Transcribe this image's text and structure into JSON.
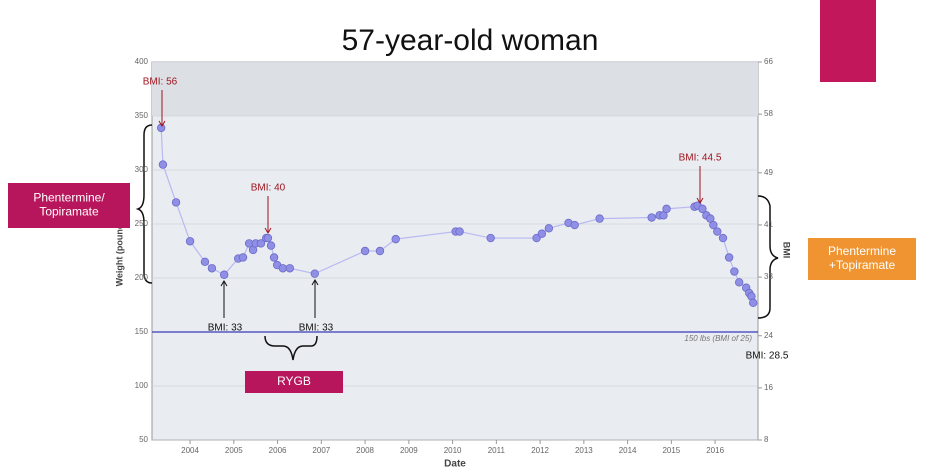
{
  "chart_data": {
    "type": "line",
    "title": "57-year-old woman",
    "xlabel": "Date",
    "ylabel": "Weight (pounds)",
    "y2label": "BMI",
    "x": [
      2003.34,
      2003.38,
      2003.68,
      2004.0,
      2004.34,
      2004.5,
      2004.78,
      2005.1,
      2005.21,
      2005.35,
      2005.44,
      2005.5,
      2005.62,
      2005.74,
      2005.78,
      2005.85,
      2005.92,
      2005.99,
      2006.12,
      2006.28,
      2006.85,
      2008.0,
      2008.34,
      2008.7,
      2010.07,
      2010.16,
      2010.87,
      2011.92,
      2012.04,
      2012.2,
      2012.65,
      2012.79,
      2013.36,
      2014.55,
      2014.73,
      2014.82,
      2014.89,
      2015.53,
      2015.6,
      2015.71,
      2015.8,
      2015.89,
      2015.96,
      2016.05,
      2016.18,
      2016.32,
      2016.44,
      2016.55,
      2016.71,
      2016.78,
      2016.83,
      2016.87
    ],
    "series": [
      {
        "name": "Weight",
        "color": "#8f8fe6",
        "values": [
          339,
          305,
          270,
          234,
          215,
          209,
          203,
          218,
          219,
          232,
          226,
          232,
          232,
          237,
          237,
          230,
          219,
          212,
          209,
          209,
          204,
          225,
          225,
          236,
          243,
          243,
          237,
          237,
          241,
          246,
          251,
          249,
          255,
          256,
          258,
          258,
          264,
          266,
          267,
          264,
          258,
          255,
          249,
          243,
          237,
          219,
          206,
          196,
          191,
          186,
          183,
          177
        ]
      }
    ],
    "xlim": [
      2003.13,
      2016.98
    ],
    "xticks": [
      2004,
      2005,
      2006,
      2007,
      2008,
      2009,
      2010,
      2011,
      2012,
      2013,
      2014,
      2015,
      2016
    ],
    "ylim": [
      50,
      400
    ],
    "yticks": [
      50,
      100,
      150,
      200,
      250,
      300,
      350,
      400
    ],
    "y2lim": [
      8,
      66
    ],
    "y2ticks": [
      8,
      16,
      24,
      33,
      41,
      49,
      58,
      66
    ],
    "reference_line": {
      "value": 150,
      "label": "150 lbs (BMI of 25)",
      "color": "#3a3ab8"
    },
    "annotations": [
      "BMI: 56",
      "BMI: 40",
      "BMI: 44.5",
      "BMI: 33",
      "BMI: 33",
      "BMI: 28.5"
    ],
    "boxes": [
      {
        "lines": [
          "Phentermine/",
          "Topiramate"
        ],
        "color": "#b8165c"
      },
      {
        "lines": [
          "RYGB"
        ],
        "color": "#b8165c"
      },
      {
        "lines": [
          "Phentermine",
          "+Topiramate"
        ],
        "color": "#ef9431"
      }
    ]
  }
}
